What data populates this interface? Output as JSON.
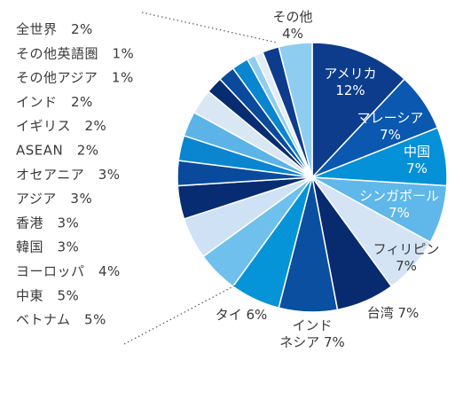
{
  "chart_data": {
    "type": "pie",
    "title": "",
    "legend_position": "left",
    "slices": [
      {
        "label": "アメリカ",
        "value": 12,
        "color": "#0d3c8c"
      },
      {
        "label": "マレーシア",
        "value": 7,
        "color": "#0a58b0"
      },
      {
        "label": "中国",
        "value": 7,
        "color": "#0591d8"
      },
      {
        "label": "シンガポール",
        "value": 7,
        "color": "#5fb7ea"
      },
      {
        "label": "フィリピン",
        "value": 7,
        "color": "#d4e4f4"
      },
      {
        "label": "台湾",
        "value": 7,
        "color": "#082a6e"
      },
      {
        "label": "インドネシア",
        "value": 7,
        "color": "#0a4fa0"
      },
      {
        "label": "タイ",
        "value": 6,
        "color": "#0594d8"
      },
      {
        "label": "ベトナム",
        "value": 5,
        "color": "#6fc0ec"
      },
      {
        "label": "中東",
        "value": 5,
        "color": "#cfe2f5"
      },
      {
        "label": "ヨーロッパ",
        "value": 4,
        "color": "#082c72"
      },
      {
        "label": "韓国",
        "value": 3,
        "color": "#0a4a9c"
      },
      {
        "label": "香港",
        "value": 3,
        "color": "#0a86d0"
      },
      {
        "label": "アジア",
        "value": 3,
        "color": "#5cb3e8"
      },
      {
        "label": "オセアニア",
        "value": 3,
        "color": "#d9e7f5"
      },
      {
        "label": "ASEAN",
        "value": 2,
        "color": "#082c72"
      },
      {
        "label": "イギリス",
        "value": 2,
        "color": "#0a4a9c"
      },
      {
        "label": "インド",
        "value": 2,
        "color": "#0a86d0"
      },
      {
        "label": "その他アジア",
        "value": 1,
        "color": "#8fcdf0"
      },
      {
        "label": "その他英語圏",
        "value": 1,
        "color": "#e3edf7"
      },
      {
        "label": "全世界",
        "value": 2,
        "color": "#0d3c8c"
      },
      {
        "label": "その他",
        "value": 4,
        "color": "#8fcdf0"
      }
    ],
    "pie_labels": [
      {
        "lines": [
          "アメリカ",
          "12%"
        ],
        "color": "#ffffff"
      },
      {
        "lines": [
          "マレーシア",
          "7%"
        ],
        "color": "#ffffff"
      },
      {
        "lines": [
          "中国",
          "7%"
        ],
        "color": "#ffffff"
      },
      {
        "lines": [
          "シンガポール",
          "7%"
        ],
        "color": "#ffffff"
      },
      {
        "lines": [
          "フィリピン",
          "7%"
        ],
        "color": "#3a3a3a"
      },
      {
        "lines": [
          "台湾 7%"
        ],
        "color": "#3a3a3a"
      },
      {
        "lines": [
          "インド",
          "ネシア 7%"
        ],
        "color": "#3a3a3a"
      },
      {
        "lines": [
          "タイ 6%"
        ],
        "color": "#3a3a3a"
      },
      {
        "lines": [
          "その他",
          "4%"
        ],
        "color": "#3a3a3a"
      }
    ],
    "legend": [
      {
        "label": "全世界",
        "value": "2%"
      },
      {
        "label": "その他英語圏",
        "value": "1%"
      },
      {
        "label": "その他アジア",
        "value": "1%"
      },
      {
        "label": "インド",
        "value": "2%"
      },
      {
        "label": "イギリス",
        "value": "2%"
      },
      {
        "label": "ASEAN",
        "value": "2%"
      },
      {
        "label": "オセアニア",
        "value": "3%"
      },
      {
        "label": "アジア",
        "value": "3%"
      },
      {
        "label": "香港",
        "value": "3%"
      },
      {
        "label": "韓国",
        "value": "3%"
      },
      {
        "label": "ヨーロッパ",
        "value": "4%"
      },
      {
        "label": "中東",
        "value": "5%"
      },
      {
        "label": "ベトナム",
        "value": "5%"
      }
    ]
  }
}
